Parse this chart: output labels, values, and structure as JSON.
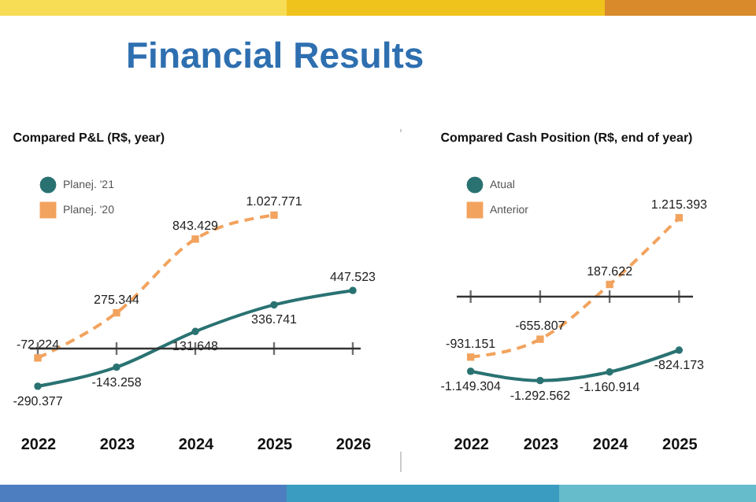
{
  "chart_data": [
    {
      "type": "other",
      "title": "Financial Results"
    },
    {
      "type": "line",
      "title": "Compared P&L (R$, year)",
      "categories": [
        "2022",
        "2023",
        "2024",
        "2025",
        "2026"
      ],
      "legend": "top left",
      "tick_labels": "x",
      "series": [
        {
          "name": "Planej. '21",
          "color": "#2a7272",
          "marker": "circle",
          "line_style": "solid",
          "values": [
            -290377,
            -143258,
            131648,
            336741,
            447523
          ],
          "value_labels": [
            "-290.377",
            "-143.258",
            "131.648",
            "336.741",
            "447.523"
          ]
        },
        {
          "name": "Planej. '20",
          "color": "#f2a35e",
          "marker": "square",
          "line_style": "dashed",
          "values": [
            -72224,
            275344,
            843429,
            1027771,
            null
          ],
          "value_labels": [
            "-72.224",
            "275.344",
            "843.429",
            "1.027.771",
            null
          ]
        }
      ]
    },
    {
      "type": "line",
      "title": "Compared Cash Position (R$, end of year)",
      "categories": [
        "2022",
        "2023",
        "2024",
        "2025"
      ],
      "legend": "top left",
      "tick_labels": "x",
      "series": [
        {
          "name": "Atual",
          "color": "#2a7272",
          "marker": "circle",
          "line_style": "solid",
          "values": [
            -1149304,
            -1292562,
            -1160914,
            -824173
          ],
          "value_labels": [
            "-1.149.304",
            "-1.292.562",
            "-1.160.914",
            "-824.173"
          ]
        },
        {
          "name": "Anterior",
          "color": "#f2a35e",
          "marker": "square",
          "line_style": "dashed",
          "values": [
            -931151,
            -655807,
            187622,
            1215393
          ],
          "value_labels": [
            "-931.151",
            "-655.807",
            "187.622",
            "1.215.393"
          ]
        }
      ]
    }
  ]
}
